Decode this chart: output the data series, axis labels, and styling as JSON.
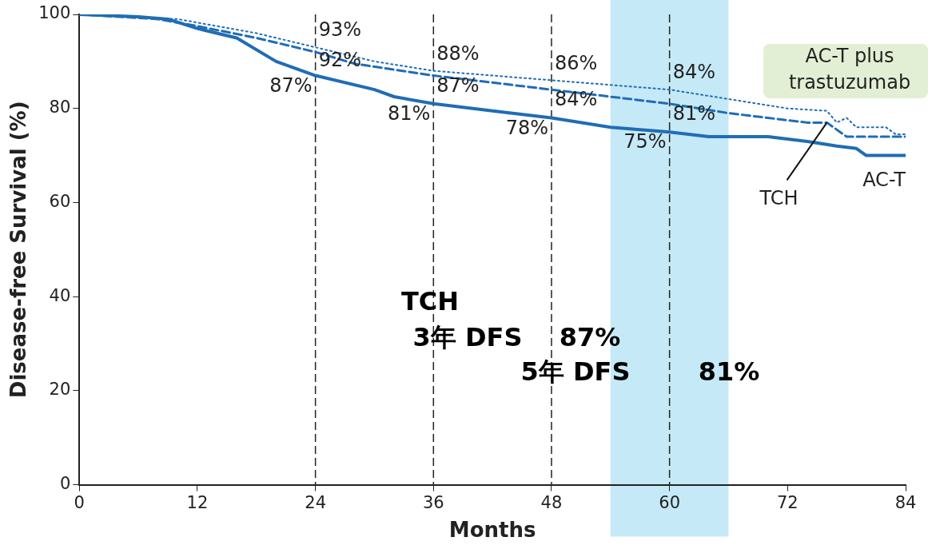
{
  "chart_data": {
    "type": "line",
    "xlabel": "Months",
    "ylabel": "Disease-free Survival (%)",
    "xlim": [
      0,
      84
    ],
    "xticks": [
      0,
      12,
      24,
      36,
      48,
      60,
      72,
      84
    ],
    "ylim": [
      0,
      100
    ],
    "yticks": [
      0,
      20,
      40,
      60,
      80,
      100
    ],
    "grid": false,
    "legend": false,
    "marker": "none",
    "series": [
      {
        "name": "AC-T",
        "color": "#1f6db5",
        "line_style": "solid",
        "x": [
          0,
          6,
          9,
          12,
          16,
          20,
          24,
          30,
          32,
          36,
          42,
          48,
          54,
          60,
          64,
          70,
          74,
          77,
          79,
          80,
          84
        ],
        "values": [
          100,
          99.5,
          99,
          97,
          95,
          90,
          87,
          84,
          82.5,
          81,
          79.5,
          78,
          76,
          75,
          74,
          74,
          73,
          72,
          71.5,
          70,
          70
        ]
      },
      {
        "name": "TCH",
        "color": "#1f6db5",
        "line_style": "dashed",
        "x": [
          0,
          8,
          12,
          18,
          24,
          28,
          36,
          42,
          48,
          54,
          60,
          66,
          70,
          74,
          76,
          78,
          84
        ],
        "values": [
          100,
          99,
          97.5,
          95,
          92,
          89.5,
          87,
          85.5,
          84,
          82.5,
          81,
          79,
          78,
          77,
          77,
          74,
          74
        ]
      },
      {
        "name": "AC-T plus trastuzumab",
        "color": "#1f6db5",
        "line_style": "dotted",
        "x": [
          0,
          10,
          18,
          24,
          30,
          36,
          42,
          48,
          54,
          60,
          66,
          72,
          76,
          77,
          78,
          79,
          82,
          83,
          84
        ],
        "values": [
          100,
          99,
          96,
          93,
          90,
          88,
          87,
          86,
          85,
          84,
          82,
          80,
          79.5,
          77,
          78,
          76,
          76,
          74.5,
          74.5
        ]
      }
    ],
    "ref_lines": [
      {
        "axis": "x",
        "value": 24,
        "color": "#222222",
        "line_style": "dashed"
      },
      {
        "axis": "x",
        "value": 36,
        "color": "#222222",
        "line_style": "dashed"
      },
      {
        "axis": "x",
        "value": 48,
        "color": "#222222",
        "line_style": "dashed"
      },
      {
        "axis": "x",
        "value": 60,
        "color": "#222222",
        "line_style": "dashed"
      }
    ],
    "bands": [
      {
        "axis": "x",
        "from": 54,
        "to": 66,
        "color": "#c5e9f7"
      }
    ],
    "annotations": [
      {
        "text": "93%",
        "x": 24,
        "y": 93
      },
      {
        "text": "92%",
        "x": 24,
        "y": 92
      },
      {
        "text": "87%",
        "x": 24,
        "y": 87
      },
      {
        "text": "88%",
        "x": 36,
        "y": 88
      },
      {
        "text": "87%",
        "x": 36,
        "y": 87
      },
      {
        "text": "81%",
        "x": 36,
        "y": 81
      },
      {
        "text": "86%",
        "x": 48,
        "y": 86
      },
      {
        "text": "84%",
        "x": 48,
        "y": 84
      },
      {
        "text": "78%",
        "x": 48,
        "y": 78
      },
      {
        "text": "84%",
        "x": 60,
        "y": 84
      },
      {
        "text": "81%",
        "x": 60,
        "y": 81
      },
      {
        "text": "75%",
        "x": 60,
        "y": 75
      },
      "TCH",
      "3年 DFS",
      "87%",
      "5年 DFS",
      "81%"
    ]
  }
}
